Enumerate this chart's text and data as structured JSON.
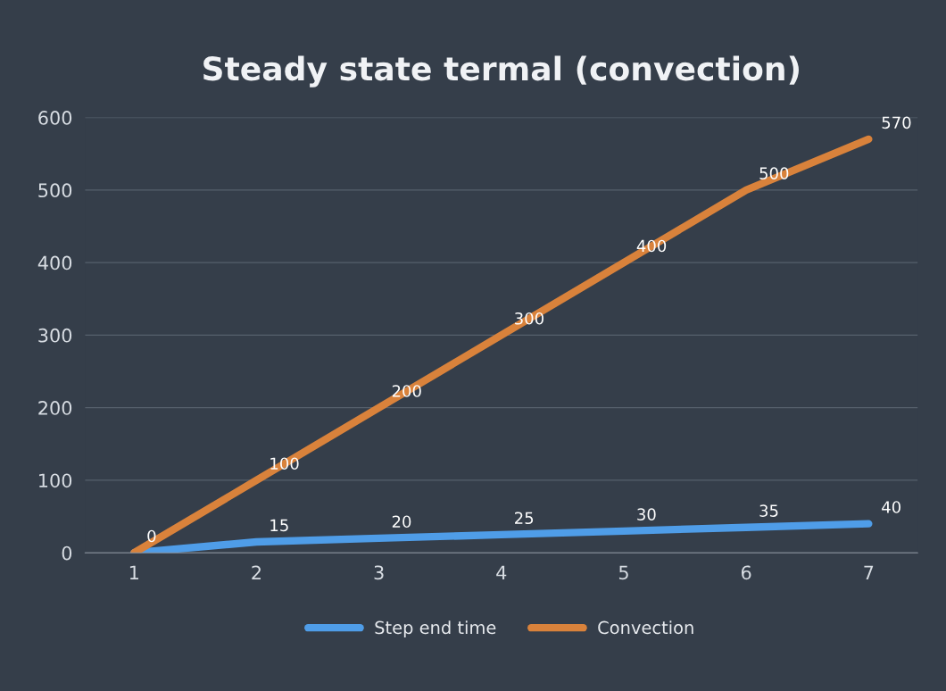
{
  "chart_data": {
    "type": "line",
    "title": "Steady state termal (convection)",
    "categories": [
      "1",
      "2",
      "3",
      "4",
      "5",
      "6",
      "7"
    ],
    "series": [
      {
        "name": "Step end time",
        "color": "#4f9de8",
        "values": [
          0,
          15,
          20,
          25,
          30,
          35,
          40
        ],
        "value_labels": [
          null,
          "15",
          "20",
          "25",
          "30",
          "35",
          "40"
        ]
      },
      {
        "name": "Convection",
        "color": "#d9823b",
        "values": [
          0,
          100,
          200,
          300,
          400,
          500,
          570
        ]
      }
    ],
    "ylim": [
      0,
      600
    ],
    "yticks": [
      0,
      100,
      200,
      300,
      400,
      500,
      600
    ],
    "grid": "y",
    "legend": "bottom",
    "data_labels": true,
    "marker": "none",
    "line_style": "solid"
  }
}
